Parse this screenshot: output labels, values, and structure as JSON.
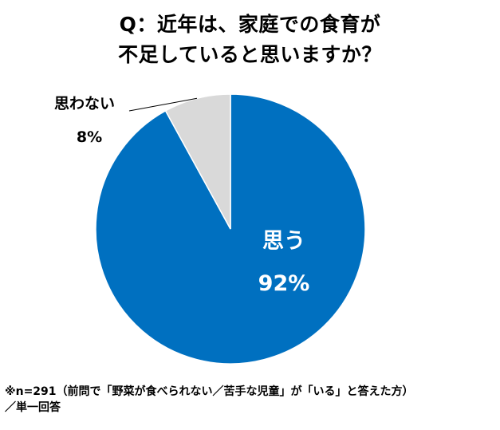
{
  "title": {
    "line1": "Q：近年は、家庭での食育が",
    "line2": "不足していると思いますか？"
  },
  "chart_data": {
    "type": "pie",
    "title": "Q：近年は、家庭での食育が不足していると思いますか？",
    "slices": [
      {
        "name": "思う",
        "value": 92,
        "label": "92%",
        "color": "#0070C0"
      },
      {
        "name": "思わない",
        "value": 8,
        "label": "8%",
        "color": "#D9D9D9"
      }
    ],
    "start": "12 o'clock",
    "direction": "clockwise"
  },
  "note": {
    "line1": "※n=291（前問で「野菜が食べられない／苦手な児童」が「いる」と答えた方）",
    "line2": "／単一回答"
  }
}
